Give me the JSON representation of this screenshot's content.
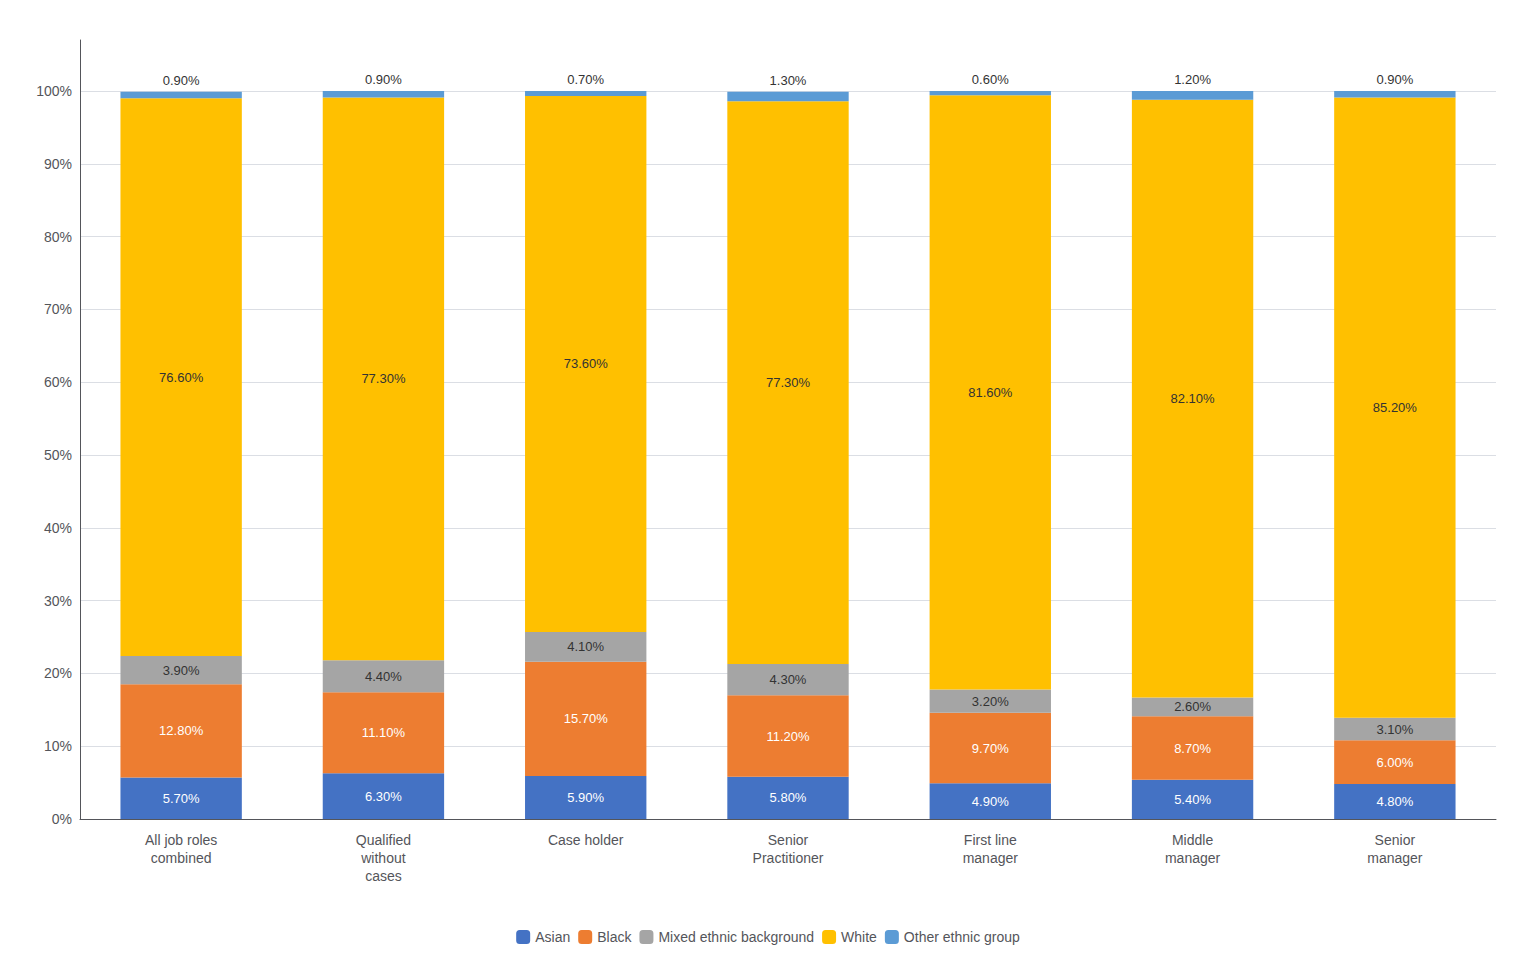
{
  "chart_data": {
    "type": "bar",
    "stacked": true,
    "categories": [
      "All job roles\ncombined",
      "Qualified\nwithout\ncases",
      "Case holder",
      "Senior\nPractitioner",
      "First line\nmanager",
      "Middle\nmanager",
      "Senior\nmanager"
    ],
    "series": [
      {
        "name": "Asian",
        "color": "#4472C4",
        "values": [
          5.7,
          6.3,
          5.9,
          5.8,
          4.9,
          5.4,
          4.8
        ],
        "value_labels": [
          "5.70%",
          "6.30%",
          "5.90%",
          "5.80%",
          "4.90%",
          "5.40%",
          "4.80%"
        ]
      },
      {
        "name": "Black",
        "color": "#ED7D31",
        "values": [
          12.8,
          11.1,
          15.7,
          11.2,
          9.7,
          8.7,
          6.0
        ],
        "value_labels": [
          "12.80%",
          "11.10%",
          "15.70%",
          "11.20%",
          "9.70%",
          "8.70%",
          "6.00%"
        ]
      },
      {
        "name": "Mixed ethnic background",
        "color": "#A5A5A5",
        "values": [
          3.9,
          4.4,
          4.1,
          4.3,
          3.2,
          2.6,
          3.1
        ],
        "value_labels": [
          "3.90%",
          "4.40%",
          "4.10%",
          "4.30%",
          "3.20%",
          "2.60%",
          "3.10%"
        ]
      },
      {
        "name": "White",
        "color": "#FFC000",
        "values": [
          76.6,
          77.3,
          73.6,
          77.3,
          81.6,
          82.1,
          85.2
        ],
        "value_labels": [
          "76.60%",
          "77.30%",
          "73.60%",
          "77.30%",
          "81.60%",
          "82.10%",
          "85.20%"
        ]
      },
      {
        "name": "Other ethnic group",
        "color": "#5B9BD5",
        "values": [
          0.9,
          0.9,
          0.7,
          1.3,
          0.6,
          1.2,
          0.9
        ],
        "value_labels": [
          "0.90%",
          "0.90%",
          "0.70%",
          "1.30%",
          "0.60%",
          "1.20%",
          "0.90%"
        ]
      }
    ],
    "ylim": [
      0,
      107
    ],
    "yticks": [
      {
        "value": 0,
        "label": "0%"
      },
      {
        "value": 10,
        "label": "10%"
      },
      {
        "value": 20,
        "label": "20%"
      },
      {
        "value": 30,
        "label": "30%"
      },
      {
        "value": 40,
        "label": "40%"
      },
      {
        "value": 50,
        "label": "50%"
      },
      {
        "value": 60,
        "label": "60%"
      },
      {
        "value": 70,
        "label": "70%"
      },
      {
        "value": 80,
        "label": "80%"
      },
      {
        "value": 90,
        "label": "90%"
      },
      {
        "value": 100,
        "label": "100%"
      }
    ],
    "grid": true,
    "legend": "bottom",
    "data_labels": true
  }
}
